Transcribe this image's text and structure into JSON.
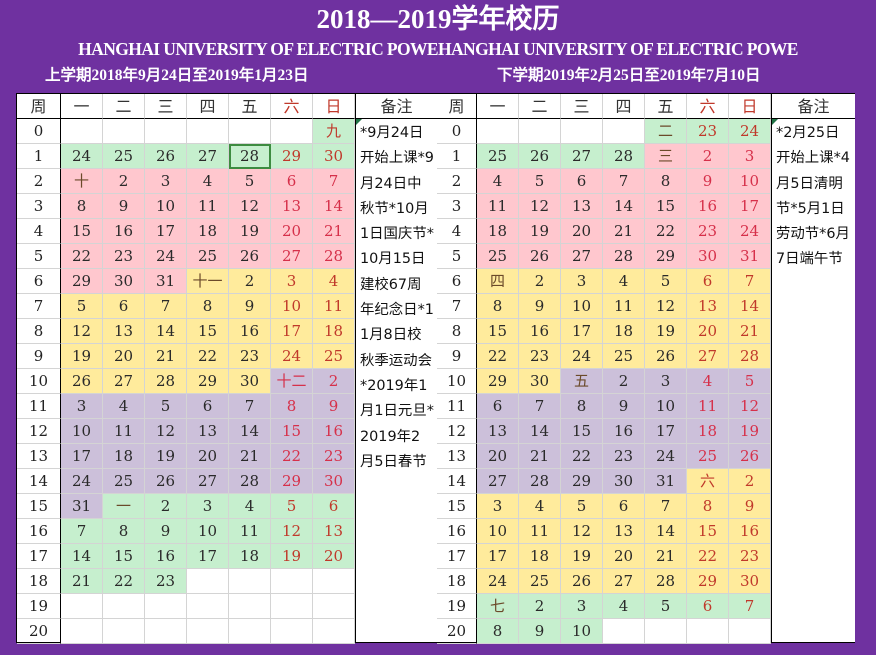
{
  "header": {
    "title": "2018—2019学年校历",
    "subtitle": "HANGHAI UNIVERSITY OF ELECTRIC POWEHANGHAI UNIVERSITY OF ELECTRIC POWE",
    "term1_title": "上学期2018年9月24日至2019年1月23日",
    "term2_title": "下学期2019年2月25日至2019年7月10日"
  },
  "columns": [
    "周",
    "一",
    "二",
    "三",
    "四",
    "五",
    "六",
    "日",
    "备注"
  ],
  "colors": {
    "background": "#6f31a0",
    "green": "#c6efce",
    "pink": "#ffc7ce",
    "yellow": "#ffeb9c",
    "purple": "#ccc0da",
    "weekend_text": "#c0392b"
  },
  "term1": {
    "weeks": [
      {
        "week": "0",
        "days": [
          "",
          "",
          "",
          "",
          "",
          "",
          "九"
        ],
        "bg": [
          "white",
          "white",
          "white",
          "white",
          "white",
          "white",
          "green"
        ]
      },
      {
        "week": "1",
        "days": [
          "24",
          "25",
          "26",
          "27",
          "28",
          "29",
          "30"
        ],
        "bg": [
          "green",
          "green",
          "green",
          "green",
          "green",
          "green",
          "green"
        ]
      },
      {
        "week": "2",
        "days": [
          "十",
          "2",
          "3",
          "4",
          "5",
          "6",
          "7"
        ],
        "bg": [
          "pink",
          "pink",
          "pink",
          "pink",
          "pink",
          "pink",
          "pink"
        ]
      },
      {
        "week": "3",
        "days": [
          "8",
          "9",
          "10",
          "11",
          "12",
          "13",
          "14"
        ],
        "bg": [
          "pink",
          "pink",
          "pink",
          "pink",
          "pink",
          "pink",
          "pink"
        ]
      },
      {
        "week": "4",
        "days": [
          "15",
          "16",
          "17",
          "18",
          "19",
          "20",
          "21"
        ],
        "bg": [
          "pink",
          "pink",
          "pink",
          "pink",
          "pink",
          "pink",
          "pink"
        ]
      },
      {
        "week": "5",
        "days": [
          "22",
          "23",
          "24",
          "25",
          "26",
          "27",
          "28"
        ],
        "bg": [
          "pink",
          "pink",
          "pink",
          "pink",
          "pink",
          "pink",
          "pink"
        ]
      },
      {
        "week": "6",
        "days": [
          "29",
          "30",
          "31",
          "十一",
          "2",
          "3",
          "4"
        ],
        "bg": [
          "pink",
          "pink",
          "pink",
          "yellow",
          "yellow",
          "yellow",
          "yellow"
        ]
      },
      {
        "week": "7",
        "days": [
          "5",
          "6",
          "7",
          "8",
          "9",
          "10",
          "11"
        ],
        "bg": [
          "yellow",
          "yellow",
          "yellow",
          "yellow",
          "yellow",
          "yellow",
          "yellow"
        ]
      },
      {
        "week": "8",
        "days": [
          "12",
          "13",
          "14",
          "15",
          "16",
          "17",
          "18"
        ],
        "bg": [
          "yellow",
          "yellow",
          "yellow",
          "yellow",
          "yellow",
          "yellow",
          "yellow"
        ]
      },
      {
        "week": "9",
        "days": [
          "19",
          "20",
          "21",
          "22",
          "23",
          "24",
          "25"
        ],
        "bg": [
          "yellow",
          "yellow",
          "yellow",
          "yellow",
          "yellow",
          "yellow",
          "yellow"
        ]
      },
      {
        "week": "10",
        "days": [
          "26",
          "27",
          "28",
          "29",
          "30",
          "十二",
          "2"
        ],
        "bg": [
          "yellow",
          "yellow",
          "yellow",
          "yellow",
          "yellow",
          "purple",
          "purple"
        ]
      },
      {
        "week": "11",
        "days": [
          "3",
          "4",
          "5",
          "6",
          "7",
          "8",
          "9"
        ],
        "bg": [
          "purple",
          "purple",
          "purple",
          "purple",
          "purple",
          "purple",
          "purple"
        ]
      },
      {
        "week": "12",
        "days": [
          "10",
          "11",
          "12",
          "13",
          "14",
          "15",
          "16"
        ],
        "bg": [
          "purple",
          "purple",
          "purple",
          "purple",
          "purple",
          "purple",
          "purple"
        ]
      },
      {
        "week": "13",
        "days": [
          "17",
          "18",
          "19",
          "20",
          "21",
          "22",
          "23"
        ],
        "bg": [
          "purple",
          "purple",
          "purple",
          "purple",
          "purple",
          "purple",
          "purple"
        ]
      },
      {
        "week": "14",
        "days": [
          "24",
          "25",
          "26",
          "27",
          "28",
          "29",
          "30"
        ],
        "bg": [
          "purple",
          "purple",
          "purple",
          "purple",
          "purple",
          "purple",
          "purple"
        ]
      },
      {
        "week": "15",
        "days": [
          "31",
          "一",
          "2",
          "3",
          "4",
          "5",
          "6"
        ],
        "bg": [
          "purple",
          "green",
          "green",
          "green",
          "green",
          "green",
          "green"
        ]
      },
      {
        "week": "16",
        "days": [
          "7",
          "8",
          "9",
          "10",
          "11",
          "12",
          "13"
        ],
        "bg": [
          "green",
          "green",
          "green",
          "green",
          "green",
          "green",
          "green"
        ]
      },
      {
        "week": "17",
        "days": [
          "14",
          "15",
          "16",
          "17",
          "18",
          "19",
          "20"
        ],
        "bg": [
          "green",
          "green",
          "green",
          "green",
          "green",
          "green",
          "green"
        ]
      },
      {
        "week": "18",
        "days": [
          "21",
          "22",
          "23",
          "",
          "",
          "",
          ""
        ],
        "bg": [
          "green",
          "green",
          "green",
          "white",
          "white",
          "white",
          "white"
        ]
      },
      {
        "week": "19",
        "days": [
          "",
          "",
          "",
          "",
          "",
          "",
          ""
        ],
        "bg": [
          "white",
          "white",
          "white",
          "white",
          "white",
          "white",
          "white"
        ]
      },
      {
        "week": "20",
        "days": [
          "",
          "",
          "",
          "",
          "",
          "",
          ""
        ],
        "bg": [
          "white",
          "white",
          "white",
          "white",
          "white",
          "white",
          "white"
        ]
      }
    ],
    "selected_cell": {
      "week": "1",
      "day_index": 4,
      "value": "28"
    },
    "notes": "*9月24日开始上课*9月24日中秋节*10月1日国庆节*10月15日建校67周年纪念日*11月8日校秋季运动会*2019年1月1日元旦*2019年2月5日春节"
  },
  "term2": {
    "weeks": [
      {
        "week": "0",
        "days": [
          "",
          "",
          "",
          "",
          "二",
          "23",
          "24"
        ],
        "bg": [
          "white",
          "white",
          "white",
          "white",
          "green",
          "green",
          "green"
        ]
      },
      {
        "week": "1",
        "days": [
          "25",
          "26",
          "27",
          "28",
          "三",
          "2",
          "3"
        ],
        "bg": [
          "green",
          "green",
          "green",
          "green",
          "pink",
          "pink",
          "pink"
        ]
      },
      {
        "week": "2",
        "days": [
          "4",
          "5",
          "6",
          "7",
          "8",
          "9",
          "10"
        ],
        "bg": [
          "pink",
          "pink",
          "pink",
          "pink",
          "pink",
          "pink",
          "pink"
        ]
      },
      {
        "week": "3",
        "days": [
          "11",
          "12",
          "13",
          "14",
          "15",
          "16",
          "17"
        ],
        "bg": [
          "pink",
          "pink",
          "pink",
          "pink",
          "pink",
          "pink",
          "pink"
        ]
      },
      {
        "week": "4",
        "days": [
          "18",
          "19",
          "20",
          "21",
          "22",
          "23",
          "24"
        ],
        "bg": [
          "pink",
          "pink",
          "pink",
          "pink",
          "pink",
          "pink",
          "pink"
        ]
      },
      {
        "week": "5",
        "days": [
          "25",
          "26",
          "27",
          "28",
          "29",
          "30",
          "31"
        ],
        "bg": [
          "pink",
          "pink",
          "pink",
          "pink",
          "pink",
          "pink",
          "pink"
        ]
      },
      {
        "week": "6",
        "days": [
          "四",
          "2",
          "3",
          "4",
          "5",
          "6",
          "7"
        ],
        "bg": [
          "yellow",
          "yellow",
          "yellow",
          "yellow",
          "yellow",
          "yellow",
          "yellow"
        ]
      },
      {
        "week": "7",
        "days": [
          "8",
          "9",
          "10",
          "11",
          "12",
          "13",
          "14"
        ],
        "bg": [
          "yellow",
          "yellow",
          "yellow",
          "yellow",
          "yellow",
          "yellow",
          "yellow"
        ]
      },
      {
        "week": "8",
        "days": [
          "15",
          "16",
          "17",
          "18",
          "19",
          "20",
          "21"
        ],
        "bg": [
          "yellow",
          "yellow",
          "yellow",
          "yellow",
          "yellow",
          "yellow",
          "yellow"
        ]
      },
      {
        "week": "9",
        "days": [
          "22",
          "23",
          "24",
          "25",
          "26",
          "27",
          "28"
        ],
        "bg": [
          "yellow",
          "yellow",
          "yellow",
          "yellow",
          "yellow",
          "yellow",
          "yellow"
        ]
      },
      {
        "week": "10",
        "days": [
          "29",
          "30",
          "五",
          "2",
          "3",
          "4",
          "5"
        ],
        "bg": [
          "yellow",
          "yellow",
          "purple",
          "purple",
          "purple",
          "purple",
          "purple"
        ]
      },
      {
        "week": "11",
        "days": [
          "6",
          "7",
          "8",
          "9",
          "10",
          "11",
          "12"
        ],
        "bg": [
          "purple",
          "purple",
          "purple",
          "purple",
          "purple",
          "purple",
          "purple"
        ]
      },
      {
        "week": "12",
        "days": [
          "13",
          "14",
          "15",
          "16",
          "17",
          "18",
          "19"
        ],
        "bg": [
          "purple",
          "purple",
          "purple",
          "purple",
          "purple",
          "purple",
          "purple"
        ]
      },
      {
        "week": "13",
        "days": [
          "20",
          "21",
          "22",
          "23",
          "24",
          "25",
          "26"
        ],
        "bg": [
          "purple",
          "purple",
          "purple",
          "purple",
          "purple",
          "purple",
          "purple"
        ]
      },
      {
        "week": "14",
        "days": [
          "27",
          "28",
          "29",
          "30",
          "31",
          "六",
          "2"
        ],
        "bg": [
          "purple",
          "purple",
          "purple",
          "purple",
          "purple",
          "yellow",
          "yellow"
        ]
      },
      {
        "week": "15",
        "days": [
          "3",
          "4",
          "5",
          "6",
          "7",
          "8",
          "9"
        ],
        "bg": [
          "yellow",
          "yellow",
          "yellow",
          "yellow",
          "yellow",
          "yellow",
          "yellow"
        ]
      },
      {
        "week": "16",
        "days": [
          "10",
          "11",
          "12",
          "13",
          "14",
          "15",
          "16"
        ],
        "bg": [
          "yellow",
          "yellow",
          "yellow",
          "yellow",
          "yellow",
          "yellow",
          "yellow"
        ]
      },
      {
        "week": "17",
        "days": [
          "17",
          "18",
          "19",
          "20",
          "21",
          "22",
          "23"
        ],
        "bg": [
          "yellow",
          "yellow",
          "yellow",
          "yellow",
          "yellow",
          "yellow",
          "yellow"
        ]
      },
      {
        "week": "18",
        "days": [
          "24",
          "25",
          "26",
          "27",
          "28",
          "29",
          "30"
        ],
        "bg": [
          "yellow",
          "yellow",
          "yellow",
          "yellow",
          "yellow",
          "yellow",
          "yellow"
        ]
      },
      {
        "week": "19",
        "days": [
          "七",
          "2",
          "3",
          "4",
          "5",
          "6",
          "7"
        ],
        "bg": [
          "green",
          "green",
          "green",
          "green",
          "green",
          "green",
          "green"
        ]
      },
      {
        "week": "20",
        "days": [
          "8",
          "9",
          "10",
          "",
          "",
          "",
          ""
        ],
        "bg": [
          "green",
          "green",
          "green",
          "white",
          "white",
          "white",
          "white"
        ]
      }
    ],
    "notes": "*2月25日开始上课*4月5日清明节*5月1日劳动节*6月7日端午节"
  }
}
